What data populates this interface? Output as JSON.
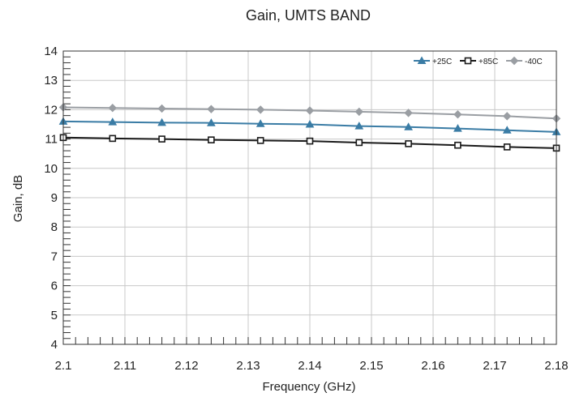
{
  "chart_data": {
    "type": "line",
    "title": "Gain, UMTS BAND",
    "xlabel": "Frequency (GHz)",
    "ylabel": "Gain, dB",
    "xlim": [
      2.1,
      2.18
    ],
    "ylim": [
      4,
      14
    ],
    "x_ticks": [
      "2.1",
      "2.11",
      "2.12",
      "2.13",
      "2.14",
      "2.15",
      "2.16",
      "2.17",
      "2.18"
    ],
    "y_ticks": [
      "4",
      "5",
      "6",
      "7",
      "8",
      "9",
      "10",
      "11",
      "12",
      "13",
      "14"
    ],
    "grid": true,
    "legend_position": "top-right",
    "series": [
      {
        "name": "+25C",
        "color": "#3a7ca5",
        "marker": "triangle",
        "x": [
          2.1,
          2.108,
          2.116,
          2.124,
          2.132,
          2.14,
          2.148,
          2.156,
          2.164,
          2.172,
          2.18
        ],
        "y": [
          11.6,
          11.58,
          11.56,
          11.55,
          11.52,
          11.5,
          11.44,
          11.41,
          11.36,
          11.3,
          11.24
        ]
      },
      {
        "name": "+85C",
        "color": "#1a1a1a",
        "marker": "square",
        "x": [
          2.1,
          2.108,
          2.116,
          2.124,
          2.132,
          2.14,
          2.148,
          2.156,
          2.164,
          2.172,
          2.18
        ],
        "y": [
          11.05,
          11.02,
          11.0,
          10.97,
          10.95,
          10.93,
          10.88,
          10.84,
          10.79,
          10.73,
          10.69
        ]
      },
      {
        "name": "-40C",
        "color": "#9a9ea3",
        "marker": "diamond",
        "x": [
          2.1,
          2.108,
          2.116,
          2.124,
          2.132,
          2.14,
          2.148,
          2.156,
          2.164,
          2.172,
          2.18
        ],
        "y": [
          12.08,
          12.06,
          12.04,
          12.02,
          12.0,
          11.97,
          11.93,
          11.89,
          11.84,
          11.78,
          11.7
        ]
      }
    ]
  }
}
